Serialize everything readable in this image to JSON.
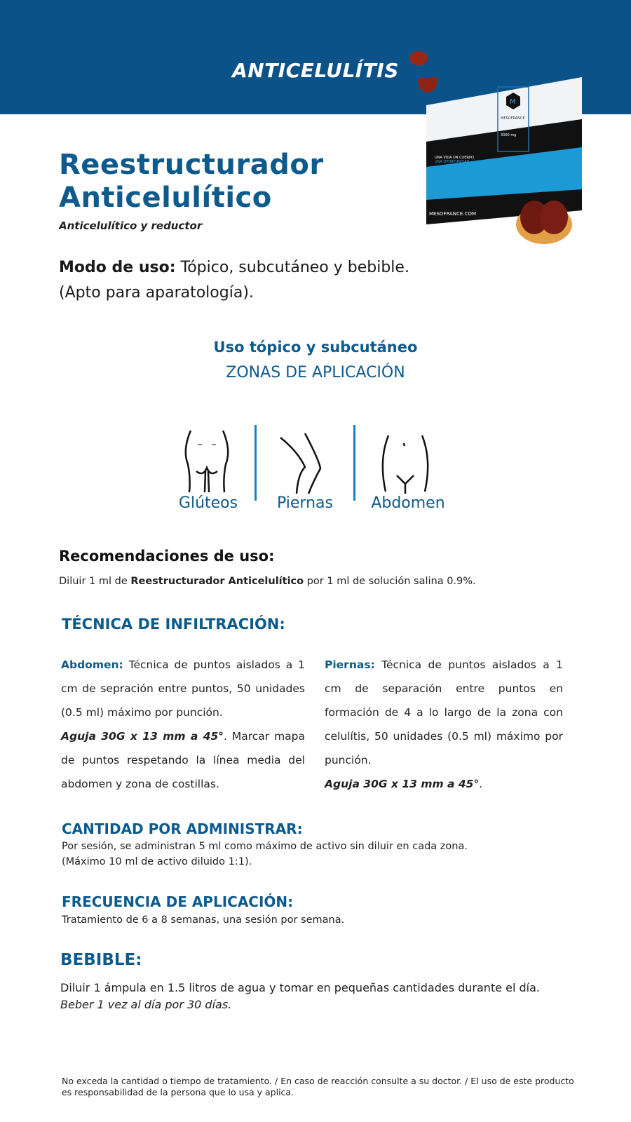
{
  "header": {
    "category": "ANTICELULÍTIS",
    "band_color": "#0b5288"
  },
  "product": {
    "title_line1": "Reestructurador",
    "title_line2": "Anticelulítico",
    "subtitle": "Anticelulítico y reductor",
    "box": {
      "brand": "MESOFRANCE",
      "slogan_line1": "UNA VIDA UN CUERPO",
      "slogan_line2": "UNA OPORTUNIDAD",
      "website": "MESOFRANCE.COM",
      "dose": "3000 mg"
    }
  },
  "modo_de_uso": {
    "label": "Modo de uso:",
    "text": " Tópico, subcutáneo y bebible.",
    "note": "(Apto para aparatología)."
  },
  "zonas": {
    "title": "Uso tópico y subcutáneo",
    "subtitle": "ZONAS DE APLICACIÓN",
    "items": [
      {
        "label": "Glúteos",
        "icon": "glutes-icon"
      },
      {
        "label": "Piernas",
        "icon": "legs-icon"
      },
      {
        "label": "Abdomen",
        "icon": "abdomen-icon"
      }
    ]
  },
  "recomendaciones": {
    "title": "Recomendaciones de uso:",
    "pre": "Diluir 1 ml de ",
    "bold": "Reestructurador Anticelulítico",
    "post": " por 1 ml de solución salina 0.9%."
  },
  "tecnica": {
    "title": "TÉCNICA DE INFILTRACIÓN:",
    "abdomen": {
      "label": "Abdomen:",
      "text": " Técnica de puntos aislados a 1 cm de sepración entre puntos, 50 unidades (0.5 ml) máximo por punción.",
      "needle": "Aguja 30G x 13 mm a 45°",
      "text2": ". Marcar mapa de puntos respetando la línea media del abdomen y zona de costillas."
    },
    "piernas": {
      "label": "Piernas:",
      "text": " Técnica de puntos aislados a 1 cm de separación entre puntos en formación de 4 a lo largo de la zona con celulítis, 50 unidades (0.5 ml) máximo por punción.",
      "needle": "Aguja 30G x 13 mm a 45°",
      "text2": "."
    }
  },
  "cantidad": {
    "title": "CANTIDAD POR ADMINISTRAR:",
    "line1": "Por sesión, se administran 5 ml como máximo de activo sin diluir en cada zona.",
    "line2": "(Máximo 10 ml de activo diluido 1:1)."
  },
  "frecuencia": {
    "title": "FRECUENCIA DE APLICACIÓN:",
    "text": "Tratamiento de 6 a 8 semanas, una sesión por semana."
  },
  "bebible": {
    "title": "BEBIBLE:",
    "line1": "Diluir 1 ámpula en 1.5 litros de agua y tomar en pequeñas cantidades durante el día.",
    "line2": "Beber 1 vez al día por 30 días."
  },
  "footer": {
    "disclaimer": "No exceda la cantidad o tiempo de tratamiento. / En caso de reacción consulte a su doctor. / El uso de este producto es responsabilidad de la persona que lo usa y aplica."
  }
}
